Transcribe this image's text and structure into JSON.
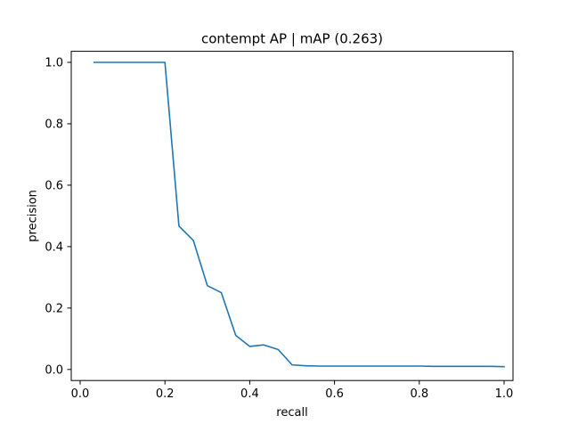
{
  "chart_data": {
    "type": "line",
    "title": "contempt AP | mAP (0.263)",
    "xlabel": "recall",
    "ylabel": "precision",
    "xlim": [
      -0.021,
      1.021
    ],
    "ylim": [
      -0.036,
      1.036
    ],
    "x_ticks": [
      0.0,
      0.2,
      0.4,
      0.6,
      0.8,
      1.0
    ],
    "x_tick_labels": [
      "0.0",
      "0.2",
      "0.4",
      "0.6",
      "0.8",
      "1.0"
    ],
    "y_ticks": [
      0.0,
      0.2,
      0.4,
      0.6,
      0.8,
      1.0
    ],
    "y_tick_labels": [
      "0.0",
      "0.2",
      "0.4",
      "0.6",
      "0.8",
      "1.0"
    ],
    "grid": false,
    "legend": null,
    "colors": {
      "series": "#1f77b4",
      "axes": "#000000",
      "background": "#ffffff"
    },
    "series": [
      {
        "x": [
          0.033,
          0.067,
          0.1,
          0.133,
          0.167,
          0.2,
          0.233,
          0.267,
          0.3,
          0.333,
          0.367,
          0.4,
          0.433,
          0.467,
          0.5,
          0.533,
          0.567,
          0.6,
          0.633,
          0.667,
          0.7,
          0.733,
          0.767,
          0.8,
          0.833,
          0.867,
          0.9,
          0.933,
          0.967,
          1.0
        ],
        "y": [
          1.0,
          1.0,
          1.0,
          1.0,
          1.0,
          1.0,
          0.467,
          0.42,
          0.273,
          0.25,
          0.111,
          0.075,
          0.08,
          0.065,
          0.015,
          0.012,
          0.011,
          0.011,
          0.011,
          0.011,
          0.011,
          0.011,
          0.011,
          0.011,
          0.01,
          0.01,
          0.01,
          0.01,
          0.01,
          0.009
        ]
      }
    ]
  }
}
